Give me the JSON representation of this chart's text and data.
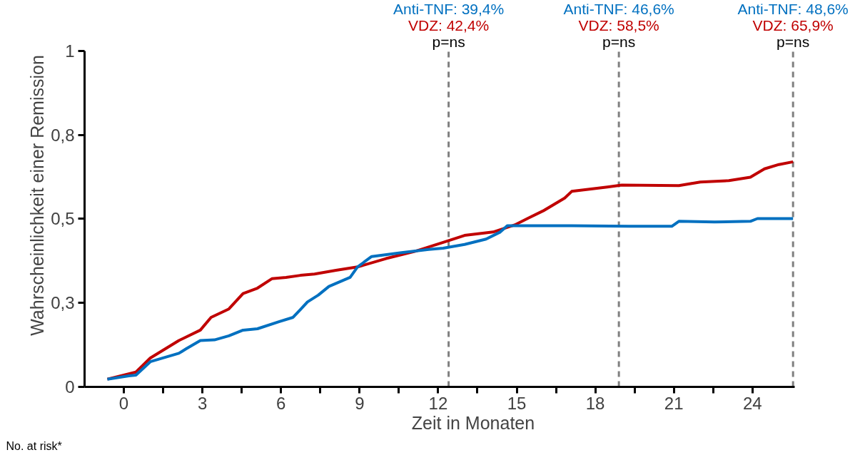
{
  "chart_data": {
    "type": "line",
    "xlabel": "Zeit in Monaten",
    "ylabel": "Wahrscheinlichkeit einer Remission",
    "xlim": [
      -1.5,
      25.6
    ],
    "xticks": [
      {
        "value": 0,
        "label": "0"
      },
      {
        "value": 3,
        "label": "3"
      },
      {
        "value": 6,
        "label": "6"
      },
      {
        "value": 9,
        "label": "9"
      },
      {
        "value": 12,
        "label": "12"
      },
      {
        "value": 15,
        "label": "15"
      },
      {
        "value": 18,
        "label": "18"
      },
      {
        "value": 21,
        "label": "21"
      },
      {
        "value": 24,
        "label": "24"
      },
      {
        "value": 1.5,
        "label": null
      },
      {
        "value": 4.5,
        "label": null
      },
      {
        "value": 7.5,
        "label": null
      },
      {
        "value": 10.5,
        "label": null
      },
      {
        "value": 13.5,
        "label": null
      },
      {
        "value": 16.5,
        "label": null
      },
      {
        "value": 19.5,
        "label": null
      },
      {
        "value": 22.5,
        "label": null
      }
    ],
    "ylim": [
      0,
      1
    ],
    "yticks": [
      0,
      {
        "value": 0.25,
        "label": "0,3"
      },
      {
        "value": 0.5,
        "label": "0,5"
      },
      {
        "value": 0.75,
        "label": "0,8"
      },
      1
    ],
    "grid": false,
    "series": [
      {
        "color": "#c00000",
        "x": [
          -0.63,
          0.46,
          1.01,
          2.1,
          2.92,
          3.33,
          4.01,
          4.55,
          5.1,
          5.65,
          6.19,
          6.74,
          7.28,
          8.1,
          8.92,
          10.01,
          11.1,
          12.19,
          13.01,
          14.1,
          14.92,
          15.46,
          16.01,
          16.83,
          17.1,
          18.46,
          19.01,
          21.19,
          22.01,
          23.1,
          23.92,
          24.46,
          25.01,
          25.55
        ],
        "values": [
          0.023,
          0.044,
          0.086,
          0.138,
          0.169,
          0.207,
          0.232,
          0.278,
          0.294,
          0.322,
          0.326,
          0.332,
          0.336,
          0.347,
          0.357,
          0.382,
          0.403,
          0.43,
          0.451,
          0.461,
          0.482,
          0.503,
          0.524,
          0.562,
          0.582,
          0.595,
          0.601,
          0.599,
          0.61,
          0.614,
          0.624,
          0.649,
          0.662,
          0.67
        ]
      },
      {
        "color": "#0070c0",
        "x": [
          -0.63,
          0.19,
          0.46,
          1.01,
          2.1,
          2.37,
          2.92,
          3.46,
          4.01,
          4.55,
          5.1,
          5.92,
          6.46,
          6.74,
          7.01,
          7.42,
          7.83,
          8.64,
          8.92,
          9.46,
          10.55,
          11.64,
          12.19,
          13.01,
          13.83,
          14.37,
          14.64,
          14.92,
          17.1,
          19.28,
          20.92,
          21.19,
          22.55,
          23.92,
          24.19,
          25.55
        ],
        "values": [
          0.023,
          0.033,
          0.035,
          0.075,
          0.1,
          0.113,
          0.138,
          0.14,
          0.152,
          0.169,
          0.173,
          0.194,
          0.207,
          0.23,
          0.253,
          0.273,
          0.299,
          0.326,
          0.357,
          0.388,
          0.399,
          0.409,
          0.413,
          0.424,
          0.44,
          0.461,
          0.48,
          0.48,
          0.48,
          0.478,
          0.478,
          0.493,
          0.491,
          0.493,
          0.501,
          0.501
        ]
      }
    ],
    "ref_lines": [
      {
        "axis": "x",
        "value": 12.4,
        "color": "#808080",
        "line_style": "dashed"
      },
      {
        "axis": "x",
        "value": 18.9,
        "color": "#808080",
        "line_style": "dashed"
      },
      {
        "axis": "x",
        "value": 25.55,
        "color": "#808080",
        "line_style": "dashed"
      }
    ],
    "annotations": [
      "Anti-TNF: 39,4%",
      "VDZ: 42,4%",
      "p=ns",
      "Anti-TNF: 46,6%",
      "VDZ: 58,5%",
      "p=ns",
      "Anti-TNF: 48,6%",
      "VDZ: 65,9%",
      "p=ns",
      "No. at risk*"
    ]
  }
}
